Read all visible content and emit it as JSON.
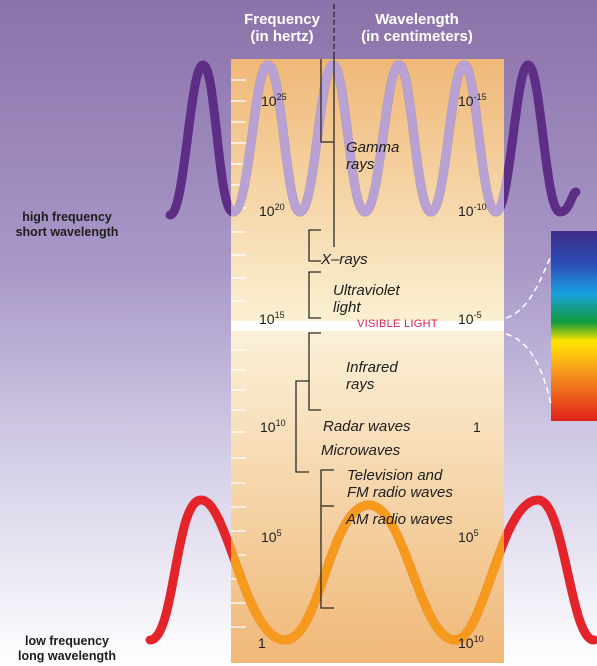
{
  "header": {
    "frequency_title": "Frequency",
    "frequency_unit": "(in hertz)",
    "wavelength_title": "Wavelength",
    "wavelength_unit": "(in centimeters)"
  },
  "side_labels": {
    "high_line1": "high frequency",
    "high_line2": "short wavelength",
    "low_line1": "low frequency",
    "low_line2": "long wavelength"
  },
  "frequency_ticks": [
    {
      "base": "10",
      "exp": "25"
    },
    {
      "base": "10",
      "exp": "20"
    },
    {
      "base": "10",
      "exp": "15"
    },
    {
      "base": "10",
      "exp": "10"
    },
    {
      "base": "10",
      "exp": "5"
    },
    {
      "base": "1",
      "exp": ""
    }
  ],
  "wavelength_ticks": [
    {
      "base": "10",
      "exp": "-15"
    },
    {
      "base": "10",
      "exp": "-10"
    },
    {
      "base": "10",
      "exp": "-5"
    },
    {
      "base": "1",
      "exp": ""
    },
    {
      "base": "10",
      "exp": "5"
    },
    {
      "base": "10",
      "exp": "10"
    }
  ],
  "bands": {
    "gamma_line1": "Gamma",
    "gamma_line2": "rays",
    "xrays": "X–rays",
    "uv_line1": "Ultraviolet",
    "uv_line2": "light",
    "visible": "VISIBLE LIGHT",
    "ir_line1": "Infrared",
    "ir_line2": "rays",
    "radar": "Radar waves",
    "microwaves": "Microwaves",
    "tv_line1": "Television and",
    "tv_line2": "FM radio waves",
    "am": "AM radio waves"
  },
  "colors": {
    "background_top": "#8c72aa",
    "background_bottom": "#ffffff",
    "strip_top": "#efb878",
    "strip_bottom": "#fbf0d2",
    "high_wave": "#5e2d86",
    "high_wave_light": "#b7a2d3",
    "low_wave": "#e3242b",
    "low_wave_light": "#f69a1e",
    "visible_text": "#d8205a"
  }
}
